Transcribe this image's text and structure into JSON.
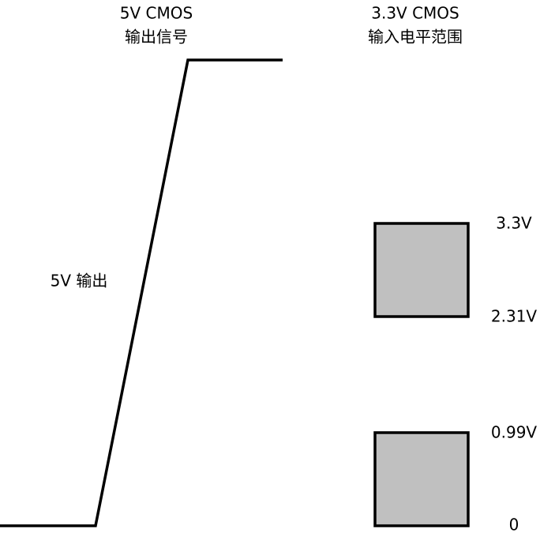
{
  "output_signal": {
    "title": [
      "5V CMOS",
      "输出信号"
    ],
    "label": "5V 输出"
  },
  "input_range": {
    "title": [
      "3.3V CMOS",
      "输入电平范围"
    ],
    "levels": [
      "3.3V",
      "2.31V",
      "0.99V",
      "0"
    ]
  }
}
